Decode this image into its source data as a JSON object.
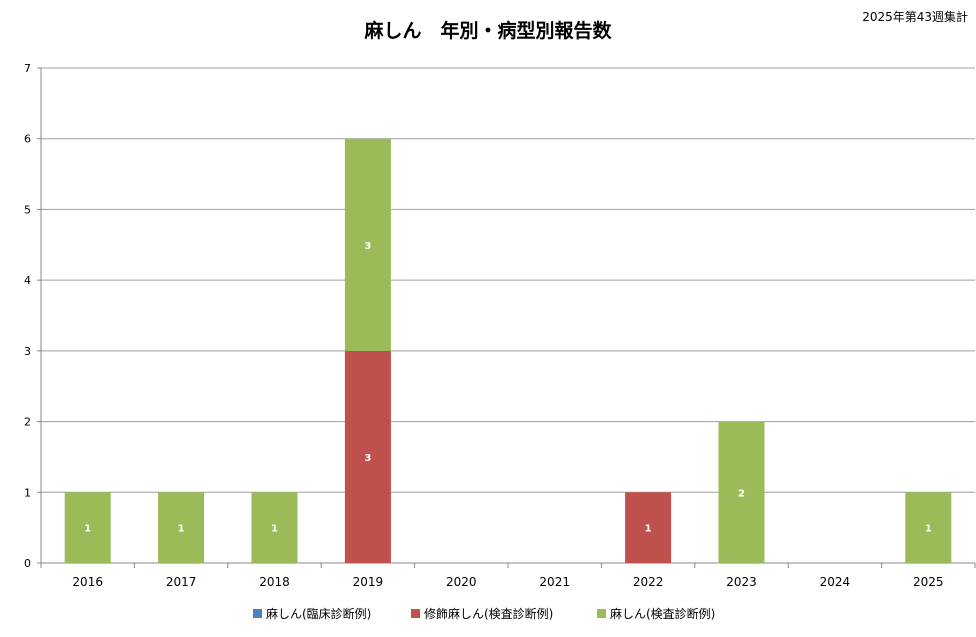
{
  "chart_data": {
    "type": "bar",
    "stacked": true,
    "title": "麻しん　年別・病型別報告数",
    "subtitle": "2025年第43週集計",
    "categories": [
      "2016",
      "2017",
      "2018",
      "2019",
      "2020",
      "2021",
      "2022",
      "2023",
      "2024",
      "2025"
    ],
    "series": [
      {
        "name": "麻しん(臨床診断例)",
        "color": "#4f81bd",
        "values": [
          0,
          0,
          0,
          0,
          0,
          0,
          0,
          0,
          0,
          0
        ]
      },
      {
        "name": "修飾麻しん(検査診断例)",
        "color": "#c0504d",
        "values": [
          0,
          0,
          0,
          3,
          0,
          0,
          1,
          0,
          0,
          0
        ]
      },
      {
        "name": "麻しん(検査診断例)",
        "color": "#9bbb59",
        "values": [
          1,
          1,
          1,
          3,
          0,
          0,
          0,
          2,
          0,
          1
        ]
      }
    ],
    "ylim": [
      0,
      7
    ],
    "yticks": [
      0,
      1,
      2,
      3,
      4,
      5,
      6,
      7
    ],
    "grid": true,
    "legend": "bottom",
    "xlabel": "",
    "ylabel": ""
  }
}
